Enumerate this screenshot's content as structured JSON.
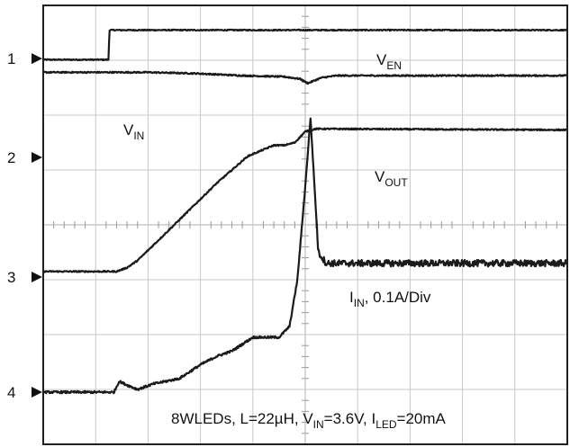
{
  "chart_data": {
    "type": "line",
    "title": "",
    "xlabel": "",
    "ylabel": "",
    "grid": true,
    "grid_divisions": {
      "x": 10,
      "y": 8
    },
    "subdivisions_per_division": 5,
    "xlim": [
      0,
      10
    ],
    "ylim": [
      0,
      8
    ],
    "channel_markers": [
      {
        "label": "1",
        "level": 7.03
      },
      {
        "label": "2",
        "level": 5.23
      },
      {
        "label": "3",
        "level": 3.05
      },
      {
        "label": "4",
        "level": 0.95
      }
    ],
    "series": [
      {
        "name": "V_EN",
        "x": [
          0,
          1.25,
          1.26,
          10
        ],
        "y": [
          7.01,
          7.01,
          7.55,
          7.55
        ],
        "noise": 0.01
      },
      {
        "name": "V_IN",
        "x": [
          0,
          1.2,
          2.0,
          2.9,
          3.8,
          4.6,
          4.9,
          5.05,
          5.3,
          5.6,
          10
        ],
        "y": [
          6.78,
          6.78,
          6.78,
          6.76,
          6.72,
          6.7,
          6.66,
          6.58,
          6.68,
          6.72,
          6.72
        ],
        "noise": 0.012
      },
      {
        "name": "V_OUT",
        "x": [
          0,
          1.4,
          1.6,
          1.8,
          2.5,
          3.3,
          3.9,
          4.4,
          4.6,
          4.8,
          5.0,
          5.2,
          10
        ],
        "y": [
          3.15,
          3.15,
          3.22,
          3.35,
          4.0,
          4.75,
          5.25,
          5.45,
          5.45,
          5.5,
          5.7,
          5.75,
          5.73
        ],
        "noise": 0.012
      },
      {
        "name": "I_IN",
        "x": [
          0,
          1.35,
          1.45,
          1.55,
          1.8,
          2.1,
          2.6,
          3.0,
          3.3,
          3.6,
          4.0,
          4.5,
          4.7,
          4.85,
          5.0,
          5.1,
          5.25,
          5.4,
          10
        ],
        "y": [
          0.95,
          0.95,
          1.15,
          1.1,
          1.0,
          1.1,
          1.2,
          1.45,
          1.6,
          1.7,
          1.95,
          1.95,
          2.15,
          3.0,
          4.7,
          5.95,
          3.5,
          3.3,
          3.3
        ],
        "noise": 0.02,
        "noise_after_x": 5.2,
        "noise_after": 0.06
      }
    ],
    "annotations": [
      {
        "base": "V",
        "sub": "EN",
        "rest": ""
      },
      {
        "base": "V",
        "sub": "IN",
        "rest": ""
      },
      {
        "base": "V",
        "sub": "OUT",
        "rest": ""
      },
      {
        "base": "I",
        "sub": "IN",
        "rest": ", 0.1A/Div"
      }
    ],
    "caption": {
      "parts": [
        {
          "t": "8WLEDs, L=22µH, V",
          "sub": false
        },
        {
          "t": "IN",
          "sub": true
        },
        {
          "t": "=3.6V, I",
          "sub": false
        },
        {
          "t": "LED",
          "sub": true
        },
        {
          "t": "=20mA",
          "sub": false
        }
      ]
    },
    "colors": {
      "trace": "#1a1a1a",
      "grid": "#c8c8c8",
      "frame": "#202020",
      "background": "#ffffff"
    }
  }
}
